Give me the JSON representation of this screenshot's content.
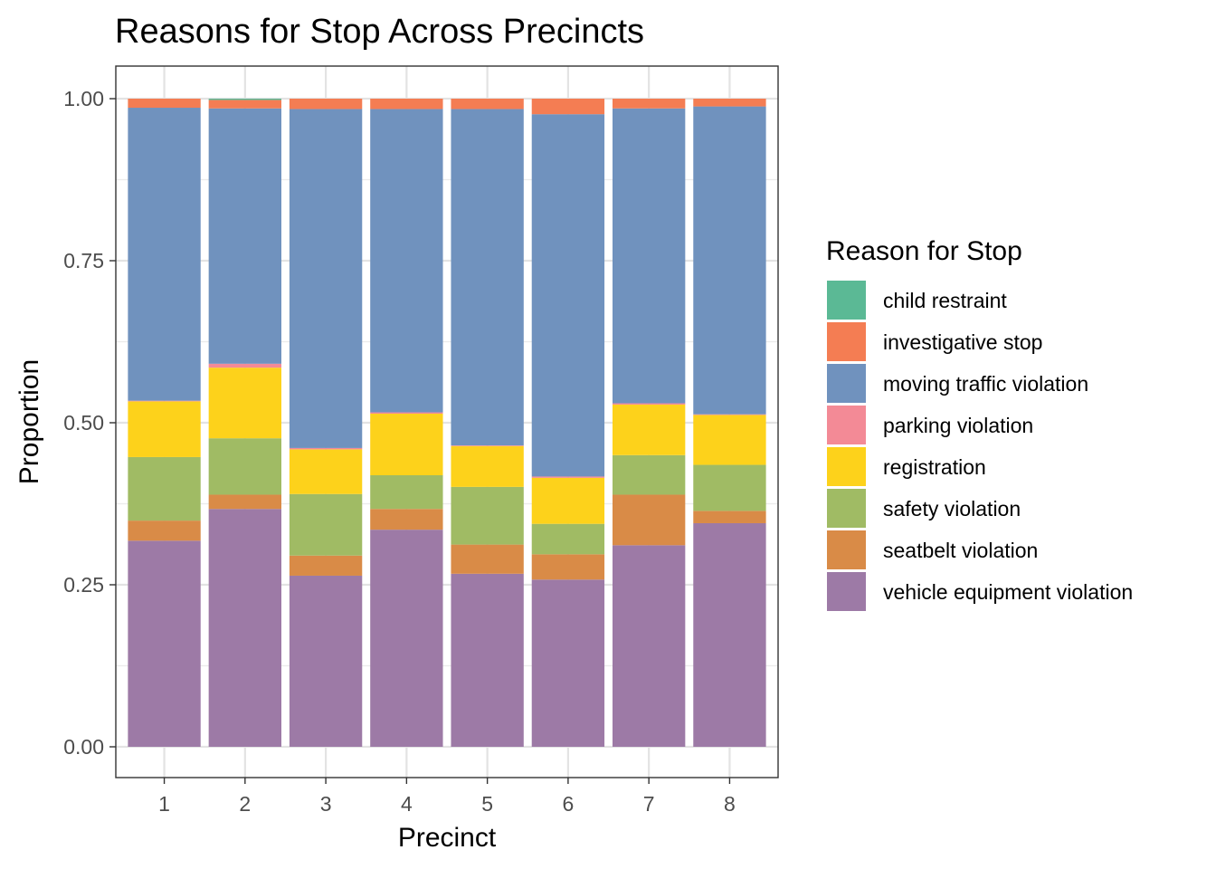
{
  "chart_data": {
    "type": "bar",
    "stacked": true,
    "title": "Reasons for Stop Across Precincts",
    "xlabel": "Precinct",
    "ylabel": "Proportion",
    "ylim": [
      0,
      1.05
    ],
    "yticks": [
      0.0,
      0.25,
      0.5,
      0.75,
      1.0
    ],
    "ytick_labels": [
      "0.00",
      "0.25",
      "0.50",
      "0.75",
      "1.00"
    ],
    "categories": [
      "1",
      "2",
      "3",
      "4",
      "5",
      "6",
      "7",
      "8"
    ],
    "legend": {
      "title": "Reason for Stop",
      "position": "right"
    },
    "grid": true,
    "series": [
      {
        "name": "vehicle equipment violation",
        "color": "#9D7AA6",
        "values": [
          0.318,
          0.367,
          0.264,
          0.335,
          0.267,
          0.258,
          0.311,
          0.345
        ]
      },
      {
        "name": "seatbelt violation",
        "color": "#D98B47",
        "values": [
          0.031,
          0.022,
          0.031,
          0.032,
          0.045,
          0.039,
          0.078,
          0.019
        ]
      },
      {
        "name": "safety violation",
        "color": "#A0BB64",
        "values": [
          0.098,
          0.087,
          0.095,
          0.052,
          0.089,
          0.047,
          0.061,
          0.071
        ]
      },
      {
        "name": "registration",
        "color": "#FDD21B",
        "values": [
          0.086,
          0.109,
          0.069,
          0.095,
          0.063,
          0.071,
          0.078,
          0.077
        ]
      },
      {
        "name": "parking violation",
        "color": "#F38A96",
        "values": [
          0.001,
          0.006,
          0.002,
          0.002,
          0.001,
          0.002,
          0.002,
          0.001
        ]
      },
      {
        "name": "moving traffic violation",
        "color": "#7092BE",
        "values": [
          0.452,
          0.394,
          0.523,
          0.468,
          0.519,
          0.559,
          0.455,
          0.475
        ]
      },
      {
        "name": "investigative stop",
        "color": "#F47D53",
        "values": [
          0.014,
          0.013,
          0.016,
          0.016,
          0.016,
          0.024,
          0.015,
          0.012
        ]
      },
      {
        "name": "child restraint",
        "color": "#5BB995",
        "values": [
          0.0,
          0.002,
          0.0,
          0.0,
          0.0,
          0.0,
          0.0,
          0.0
        ]
      }
    ],
    "legend_order": [
      "child restraint",
      "investigative stop",
      "moving traffic violation",
      "parking violation",
      "registration",
      "safety violation",
      "seatbelt violation",
      "vehicle equipment violation"
    ]
  }
}
